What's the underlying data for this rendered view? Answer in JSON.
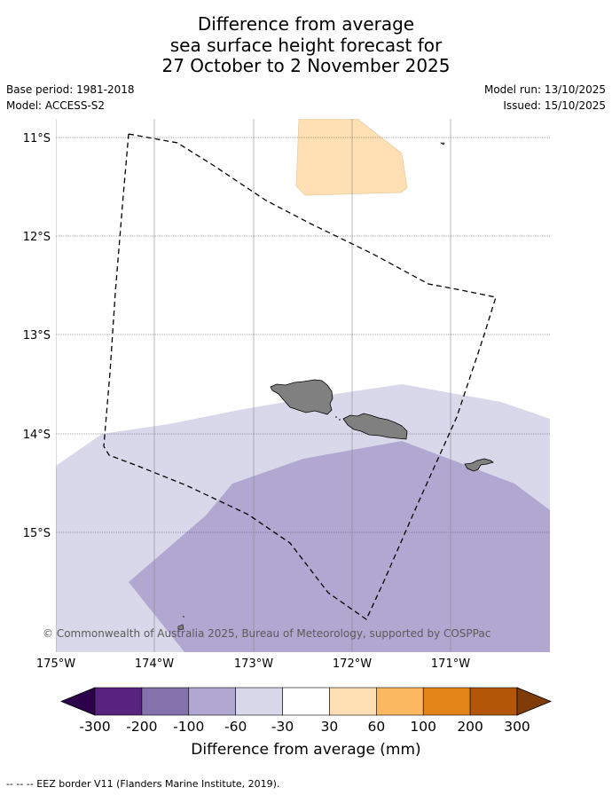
{
  "title": {
    "line1": "Difference from average",
    "line2": "sea surface height forecast for",
    "line3": "27 October to 2 November 2025"
  },
  "meta": {
    "base_period": "Base period: 1981-2018",
    "model": "Model: ACCESS-S2",
    "model_run": "Model run: 13/10/2025",
    "issued": "Issued: 15/10/2025"
  },
  "map": {
    "lat_labels": [
      "11°S",
      "12°S",
      "13°S",
      "14°S",
      "15°S"
    ],
    "lon_labels": [
      "175°W",
      "174°W",
      "173°W",
      "172°W",
      "171°W"
    ],
    "copyright": "© Commonwealth of Australia 2025, Bureau of Meteorology, supported by COSPPac"
  },
  "colorbar": {
    "labels": [
      "-300",
      "-200",
      "-100",
      "-60",
      "-30",
      "30",
      "60",
      "100",
      "200",
      "300"
    ],
    "colors": [
      "#57237f",
      "#8472ad",
      "#b0a8d1",
      "#d9d8ea",
      "#ffffff",
      "#fee0b4",
      "#fbb860",
      "#e38418",
      "#b45608"
    ],
    "under_color": "#2d004b",
    "over_color": "#7f3b08",
    "title": "Difference from average (mm)"
  },
  "footer": {
    "legend_text": "-- -- -- EEZ border V11 (Flanders Marine Institute, 2019)."
  }
}
